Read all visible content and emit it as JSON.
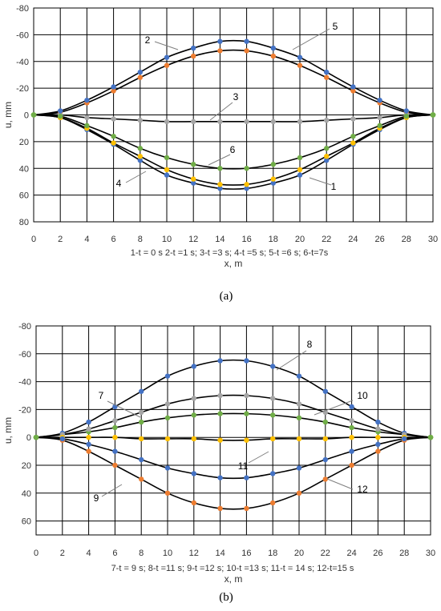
{
  "figures": [
    {
      "caption": "(a)",
      "legend_text": "1-t = 0 s  2-t =1 s;  3-t =3 s;  4-t =5 s;  5-t =6 s; 6-t=7s"
    },
    {
      "caption": "(b)",
      "legend_text": "7-t = 9 s;  8-t =11 s;  9-t =12 s;  10-t =13 s;  11-t = 14 s;  12-t=15 s"
    }
  ],
  "chart_data": [
    {
      "type": "line",
      "xlabel": "x, m",
      "ylabel": "u, mm",
      "xlim": [
        0,
        30
      ],
      "ylim": [
        80,
        -80
      ],
      "y_axis_reversed": true,
      "grid": true,
      "x_ticks": [
        "0",
        "2",
        "4",
        "6",
        "8",
        "10",
        "12",
        "14",
        "16",
        "18",
        "20",
        "22",
        "24",
        "26",
        "28",
        "30"
      ],
      "y_ticks": [
        "-80",
        "-60",
        "-40",
        "-20",
        "0",
        "20",
        "40",
        "60",
        "80"
      ],
      "x": [
        0,
        2,
        4,
        6,
        8,
        10,
        12,
        14,
        16,
        18,
        20,
        22,
        24,
        26,
        28,
        30
      ],
      "series": [
        {
          "name": "1",
          "color": "#4472C4",
          "values": [
            0,
            2,
            11,
            22,
            34,
            45,
            51,
            55,
            55,
            51,
            45,
            34,
            22,
            11,
            2,
            0
          ]
        },
        {
          "name": "2",
          "color": "#ED7D31",
          "values": [
            0,
            -2,
            -9,
            -18,
            -28,
            -37,
            -44,
            -48,
            -48,
            -44,
            -37,
            -28,
            -18,
            -9,
            -2,
            0
          ]
        },
        {
          "name": "3",
          "color": "#A5A5A5",
          "values": [
            0,
            0,
            2,
            3,
            4,
            5,
            5,
            5,
            5,
            5,
            5,
            4,
            3,
            2,
            0,
            0
          ]
        },
        {
          "name": "4",
          "color": "#FFC000",
          "values": [
            0,
            2,
            10,
            21,
            31,
            41,
            48,
            52,
            52,
            48,
            41,
            31,
            21,
            10,
            2,
            0
          ]
        },
        {
          "name": "5",
          "color": "#4472C4",
          "values": [
            0,
            -3,
            -11,
            -21,
            -32,
            -43,
            -50,
            -55,
            -55,
            -50,
            -43,
            -32,
            -21,
            -11,
            -3,
            0
          ]
        },
        {
          "name": "6",
          "color": "#70AD47",
          "values": [
            0,
            1,
            8,
            16,
            25,
            32,
            37,
            40,
            40,
            37,
            32,
            25,
            16,
            8,
            1,
            0
          ]
        }
      ],
      "curve_labels": [
        "1",
        "2",
        "3",
        "4",
        "5",
        "6"
      ]
    },
    {
      "type": "line",
      "xlabel": "x, m",
      "ylabel": "u, mm",
      "xlim": [
        0,
        30
      ],
      "ylim": [
        70,
        -80
      ],
      "y_axis_reversed": true,
      "grid": true,
      "x_ticks": [
        "0",
        "2",
        "4",
        "6",
        "8",
        "10",
        "12",
        "14",
        "16",
        "18",
        "20",
        "22",
        "24",
        "26",
        "28",
        "30"
      ],
      "y_ticks": [
        "-80",
        "-60",
        "-40",
        "-20",
        "0",
        "20",
        "40",
        "60"
      ],
      "x": [
        0,
        2,
        4,
        6,
        8,
        10,
        12,
        14,
        16,
        18,
        20,
        22,
        24,
        26,
        28,
        30
      ],
      "series": [
        {
          "name": "7",
          "color": "#70AD47",
          "values": [
            0,
            -2,
            -4,
            -7,
            -11,
            -14,
            -16,
            -17,
            -17,
            -16,
            -14,
            -11,
            -7,
            -4,
            -2,
            0
          ]
        },
        {
          "name": "8",
          "color": "#4472C4",
          "values": [
            0,
            -3,
            -11,
            -22,
            -33,
            -44,
            -51,
            -55,
            -55,
            -51,
            -44,
            -33,
            -22,
            -11,
            -3,
            0
          ]
        },
        {
          "name": "9",
          "color": "#ED7D31",
          "values": [
            0,
            2,
            10,
            20,
            30,
            40,
            47,
            51,
            51,
            47,
            40,
            30,
            20,
            10,
            2,
            0
          ]
        },
        {
          "name": "10",
          "color": "#A5A5A5",
          "values": [
            0,
            -2,
            -6,
            -12,
            -18,
            -24,
            -28,
            -30,
            -30,
            -28,
            -24,
            -18,
            -12,
            -6,
            -2,
            0
          ]
        },
        {
          "name": "11",
          "color": "#FFC000",
          "values": [
            0,
            0,
            0,
            0,
            1,
            1,
            1,
            2,
            2,
            1,
            1,
            1,
            0,
            0,
            0,
            0
          ]
        },
        {
          "name": "12",
          "color": "#4472C4",
          "values": [
            0,
            1,
            5,
            10,
            16,
            22,
            26,
            29,
            29,
            26,
            22,
            16,
            10,
            5,
            1,
            0
          ]
        }
      ],
      "curve_labels": [
        "7",
        "8",
        "9",
        "10",
        "11",
        "12"
      ]
    }
  ]
}
